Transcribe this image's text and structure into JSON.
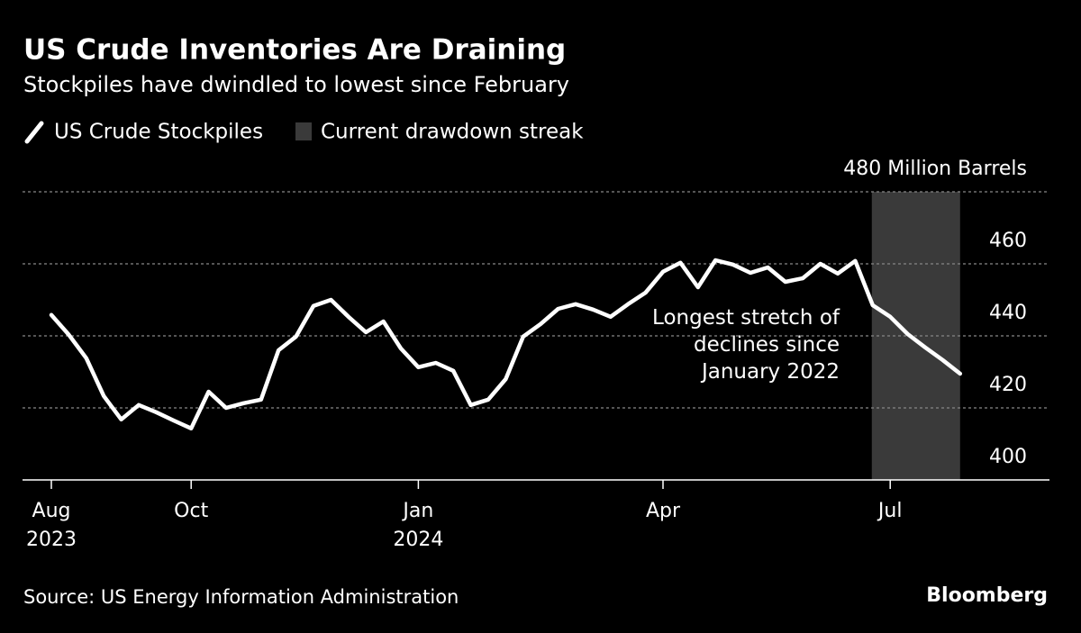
{
  "chart_data": {
    "type": "line",
    "title": "US Crude Inventories Are Draining",
    "subtitle": "Stockpiles have dwindled to lowest since February",
    "categories": [
      "Aug\n2023",
      null,
      null,
      null,
      null,
      null,
      null,
      null,
      "Oct",
      null,
      null,
      null,
      null,
      null,
      null,
      null,
      null,
      null,
      null,
      null,
      null,
      "Jan\n2024",
      null,
      null,
      null,
      null,
      null,
      null,
      null,
      null,
      null,
      null,
      null,
      null,
      null,
      "Apr",
      null,
      null,
      null,
      null,
      null,
      null,
      null,
      null,
      null,
      null,
      null,
      null,
      "Jul",
      null,
      null,
      null,
      null
    ],
    "series": [
      {
        "name": "US Crude Stockpiles",
        "color": "#ffffff",
        "values": [
          445.8,
          440.3,
          433.8,
          423.3,
          416.8,
          420.8,
          418.8,
          416.5,
          414.3,
          424.5,
          420,
          421.3,
          422.3,
          436,
          439.8,
          448.3,
          450,
          445.3,
          441,
          444,
          436.5,
          431.3,
          432.5,
          430.3,
          420.8,
          422.3,
          428,
          439.8,
          443.3,
          447.5,
          448.8,
          447.3,
          445.3,
          448.8,
          452,
          457.8,
          460.3,
          453.5,
          461,
          459.8,
          457.5,
          459,
          455,
          456,
          460,
          457.3,
          460.8,
          448.5,
          445.3,
          440.5,
          436.8,
          433.3,
          429.5
        ]
      }
    ],
    "highlight": {
      "name": "Current drawdown streak",
      "color": "#3a3a3a",
      "from": 47,
      "to": 52
    },
    "ylim": [
      400,
      480
    ],
    "yticks": [
      400,
      420,
      440,
      460,
      {
        "value": 480,
        "label": "480 Million Barrels"
      }
    ],
    "grid": true,
    "annotation": "Longest stretch of\ndeclines since\nJanuary 2022",
    "source": "Source: US Energy Information Administration",
    "brand": "Bloomberg"
  }
}
